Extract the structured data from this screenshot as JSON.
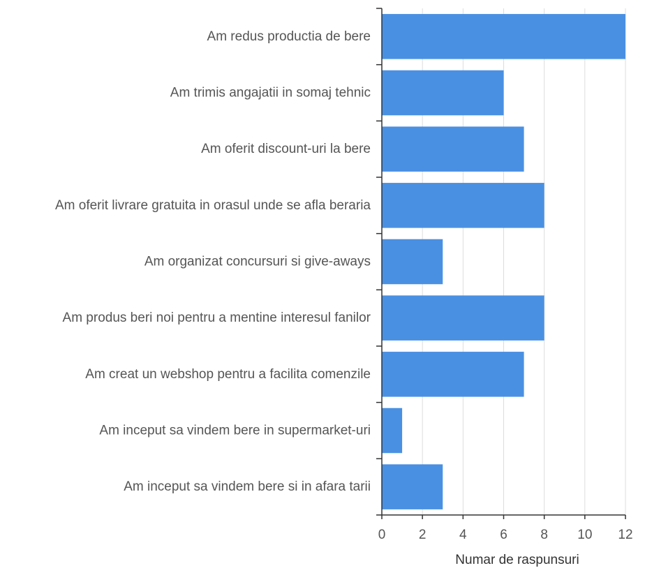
{
  "chart_data": {
    "type": "bar",
    "orientation": "horizontal",
    "title": "",
    "xlabel": "Numar de raspunsuri",
    "ylabel": "",
    "xlim": [
      0,
      12
    ],
    "x_ticks": [
      0,
      2,
      4,
      6,
      8,
      10,
      12
    ],
    "grid": true,
    "legend": "none",
    "categories": [
      "Am redus productia de bere",
      "Am trimis angajatii in somaj tehnic",
      "Am oferit discount-uri la bere",
      "Am oferit livrare gratuita in orasul unde se afla beraria",
      "Am organizat concursuri si give-aways",
      "Am produs beri noi pentru a mentine interesul fanilor",
      "Am creat un webshop pentru a facilita comenzile",
      "Am inceput sa vindem bere in supermarket-uri",
      "Am inceput sa vindem bere si in afara tarii"
    ],
    "values": [
      12,
      6,
      7,
      8,
      3,
      8,
      7,
      1,
      3
    ],
    "colors": {
      "bar": "#4A90E2",
      "grid": "#dddddd",
      "axis": "#333333"
    }
  }
}
